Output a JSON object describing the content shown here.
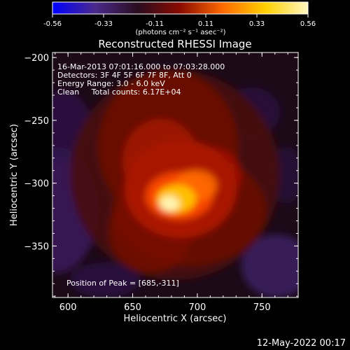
{
  "chart_data": {
    "type": "heatmap",
    "title": "Reconstructed RHESSI Image",
    "xlabel": "Heliocentric X (arcsec)",
    "ylabel": "Heliocentric Y (arcsec)",
    "xlim": [
      588,
      778
    ],
    "ylim": [
      -391,
      -196
    ],
    "x_ticks": [
      600,
      650,
      700,
      750
    ],
    "y_ticks": [
      -200,
      -250,
      -300,
      -350
    ],
    "colorbar": {
      "ticks": [
        "-0.56",
        "-0.33",
        "-0.11",
        "0.11",
        "0.33",
        "0.56"
      ],
      "unit_label": "(photons cm⁻² s⁻¹ asec⁻²)",
      "colors": [
        "#0000ff",
        "#4b2a8c",
        "#2a0d20",
        "#8a0a00",
        "#ff6a00",
        "#ffd000",
        "#fff6c0"
      ]
    },
    "info_lines": [
      "16-Mar-2013 07:01:16.000 to 07:03:28.000",
      "Detectors: 3F 4F 5F 6F 7F 8F, Att 0",
      "Energy Range: 3.0 - 6.0 keV",
      "Clean     Total counts: 6.17E+04"
    ],
    "peak_label": "Position of Peak = [685,-311]",
    "peak": [
      685,
      -311
    ],
    "timestamp": "12-May-2022 00:17"
  }
}
